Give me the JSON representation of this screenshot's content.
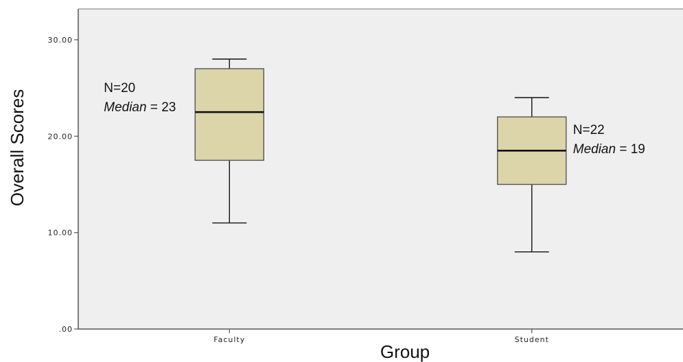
{
  "chart_data": {
    "type": "boxplot",
    "xlabel": "Group",
    "ylabel": "Overall Scores",
    "ylim": [
      0,
      33.2
    ],
    "yticks": [
      {
        "value": 0,
        "label": ".00"
      },
      {
        "value": 10,
        "label": "10.00"
      },
      {
        "value": 20,
        "label": "20.00"
      },
      {
        "value": 30,
        "label": "30.00"
      }
    ],
    "grid": false,
    "colors": {
      "plot_bg": "#efefef",
      "box_fill": "#dbd5a9",
      "box_stroke": "#555555",
      "line": "#111111"
    },
    "categories": [
      "Faculty",
      "Student"
    ],
    "boxes": [
      {
        "category": "Faculty",
        "min": 11,
        "q1": 17.5,
        "median": 22.5,
        "q3": 27,
        "max": 28,
        "annotation": {
          "n_text": "N=20",
          "median_word": "Median",
          "median_rest": " = 23",
          "side": "left"
        }
      },
      {
        "category": "Student",
        "min": 8,
        "q1": 15,
        "median": 18.5,
        "q3": 22,
        "max": 24,
        "annotation": {
          "n_text": "N=22",
          "median_word": "Median",
          "median_rest": " = 19",
          "side": "right"
        }
      }
    ]
  }
}
